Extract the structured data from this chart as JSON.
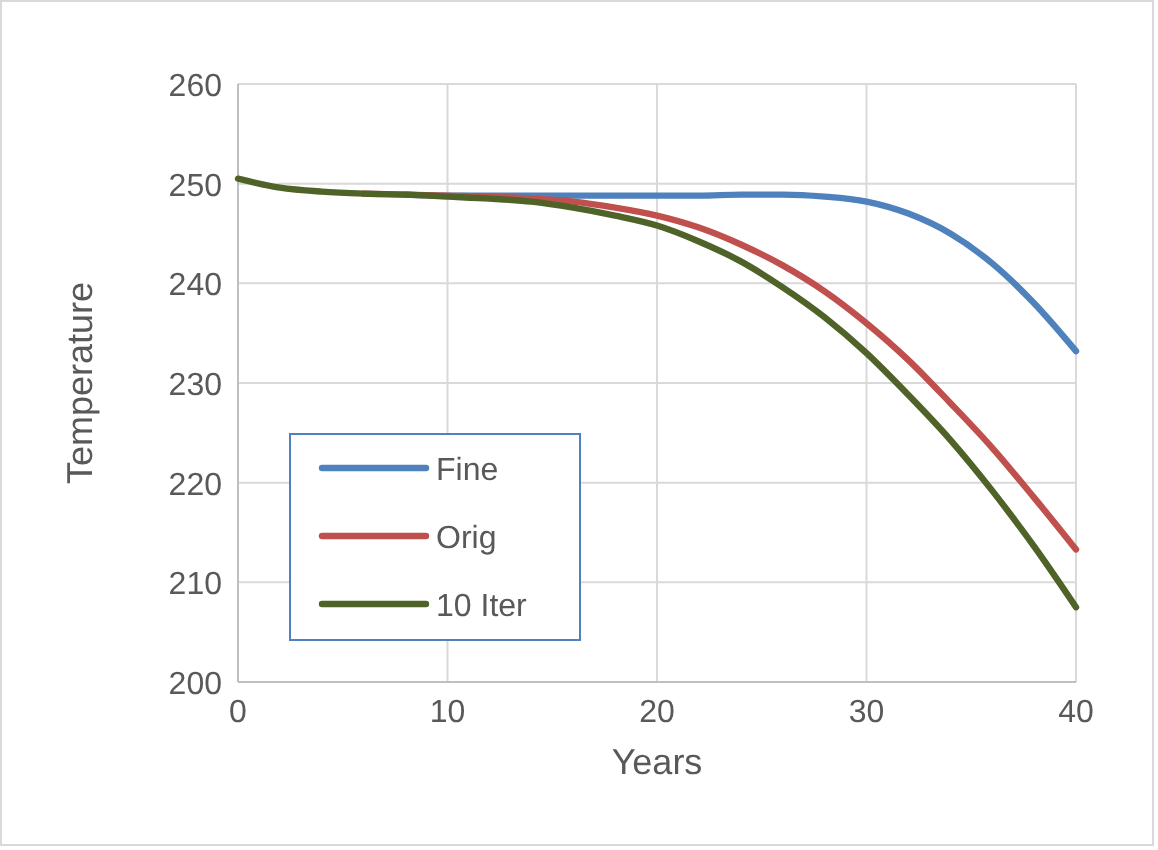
{
  "chart_data": {
    "type": "line",
    "xlabel": "Years",
    "ylabel": "Temperature",
    "x": [
      0,
      2,
      4,
      6,
      8,
      10,
      12,
      14,
      16,
      18,
      20,
      22,
      24,
      26,
      28,
      30,
      32,
      34,
      36,
      38,
      40
    ],
    "xlim": [
      0,
      40
    ],
    "xticks": [
      0,
      10,
      20,
      30,
      40
    ],
    "ylim": [
      200,
      260
    ],
    "yticks": [
      200,
      210,
      220,
      230,
      240,
      250,
      260
    ],
    "grid": true,
    "legend": "bottom left",
    "marker": "none",
    "line_style": "solid",
    "series": [
      {
        "name": "Fine",
        "color": "#4f81bd",
        "values": [
          null,
          null,
          null,
          null,
          248.9,
          248.8,
          248.8,
          248.8,
          248.8,
          248.8,
          248.8,
          248.8,
          248.9,
          248.9,
          248.7,
          248.2,
          247.0,
          245.0,
          242.0,
          238.0,
          233.2
        ]
      },
      {
        "name": "Orig",
        "color": "#c0504d",
        "values": [
          null,
          null,
          null,
          249.0,
          248.9,
          248.8,
          248.7,
          248.5,
          248.2,
          247.6,
          246.8,
          245.6,
          243.9,
          241.8,
          239.2,
          236.0,
          232.3,
          228.0,
          223.5,
          218.5,
          213.3
        ]
      },
      {
        "name": "10 Iter",
        "color": "#4f6228",
        "values": [
          250.5,
          249.6,
          249.2,
          249.0,
          248.9,
          248.7,
          248.5,
          248.2,
          247.6,
          246.8,
          245.8,
          244.2,
          242.2,
          239.6,
          236.6,
          233.0,
          228.8,
          224.3,
          219.2,
          213.6,
          207.5
        ]
      }
    ]
  }
}
